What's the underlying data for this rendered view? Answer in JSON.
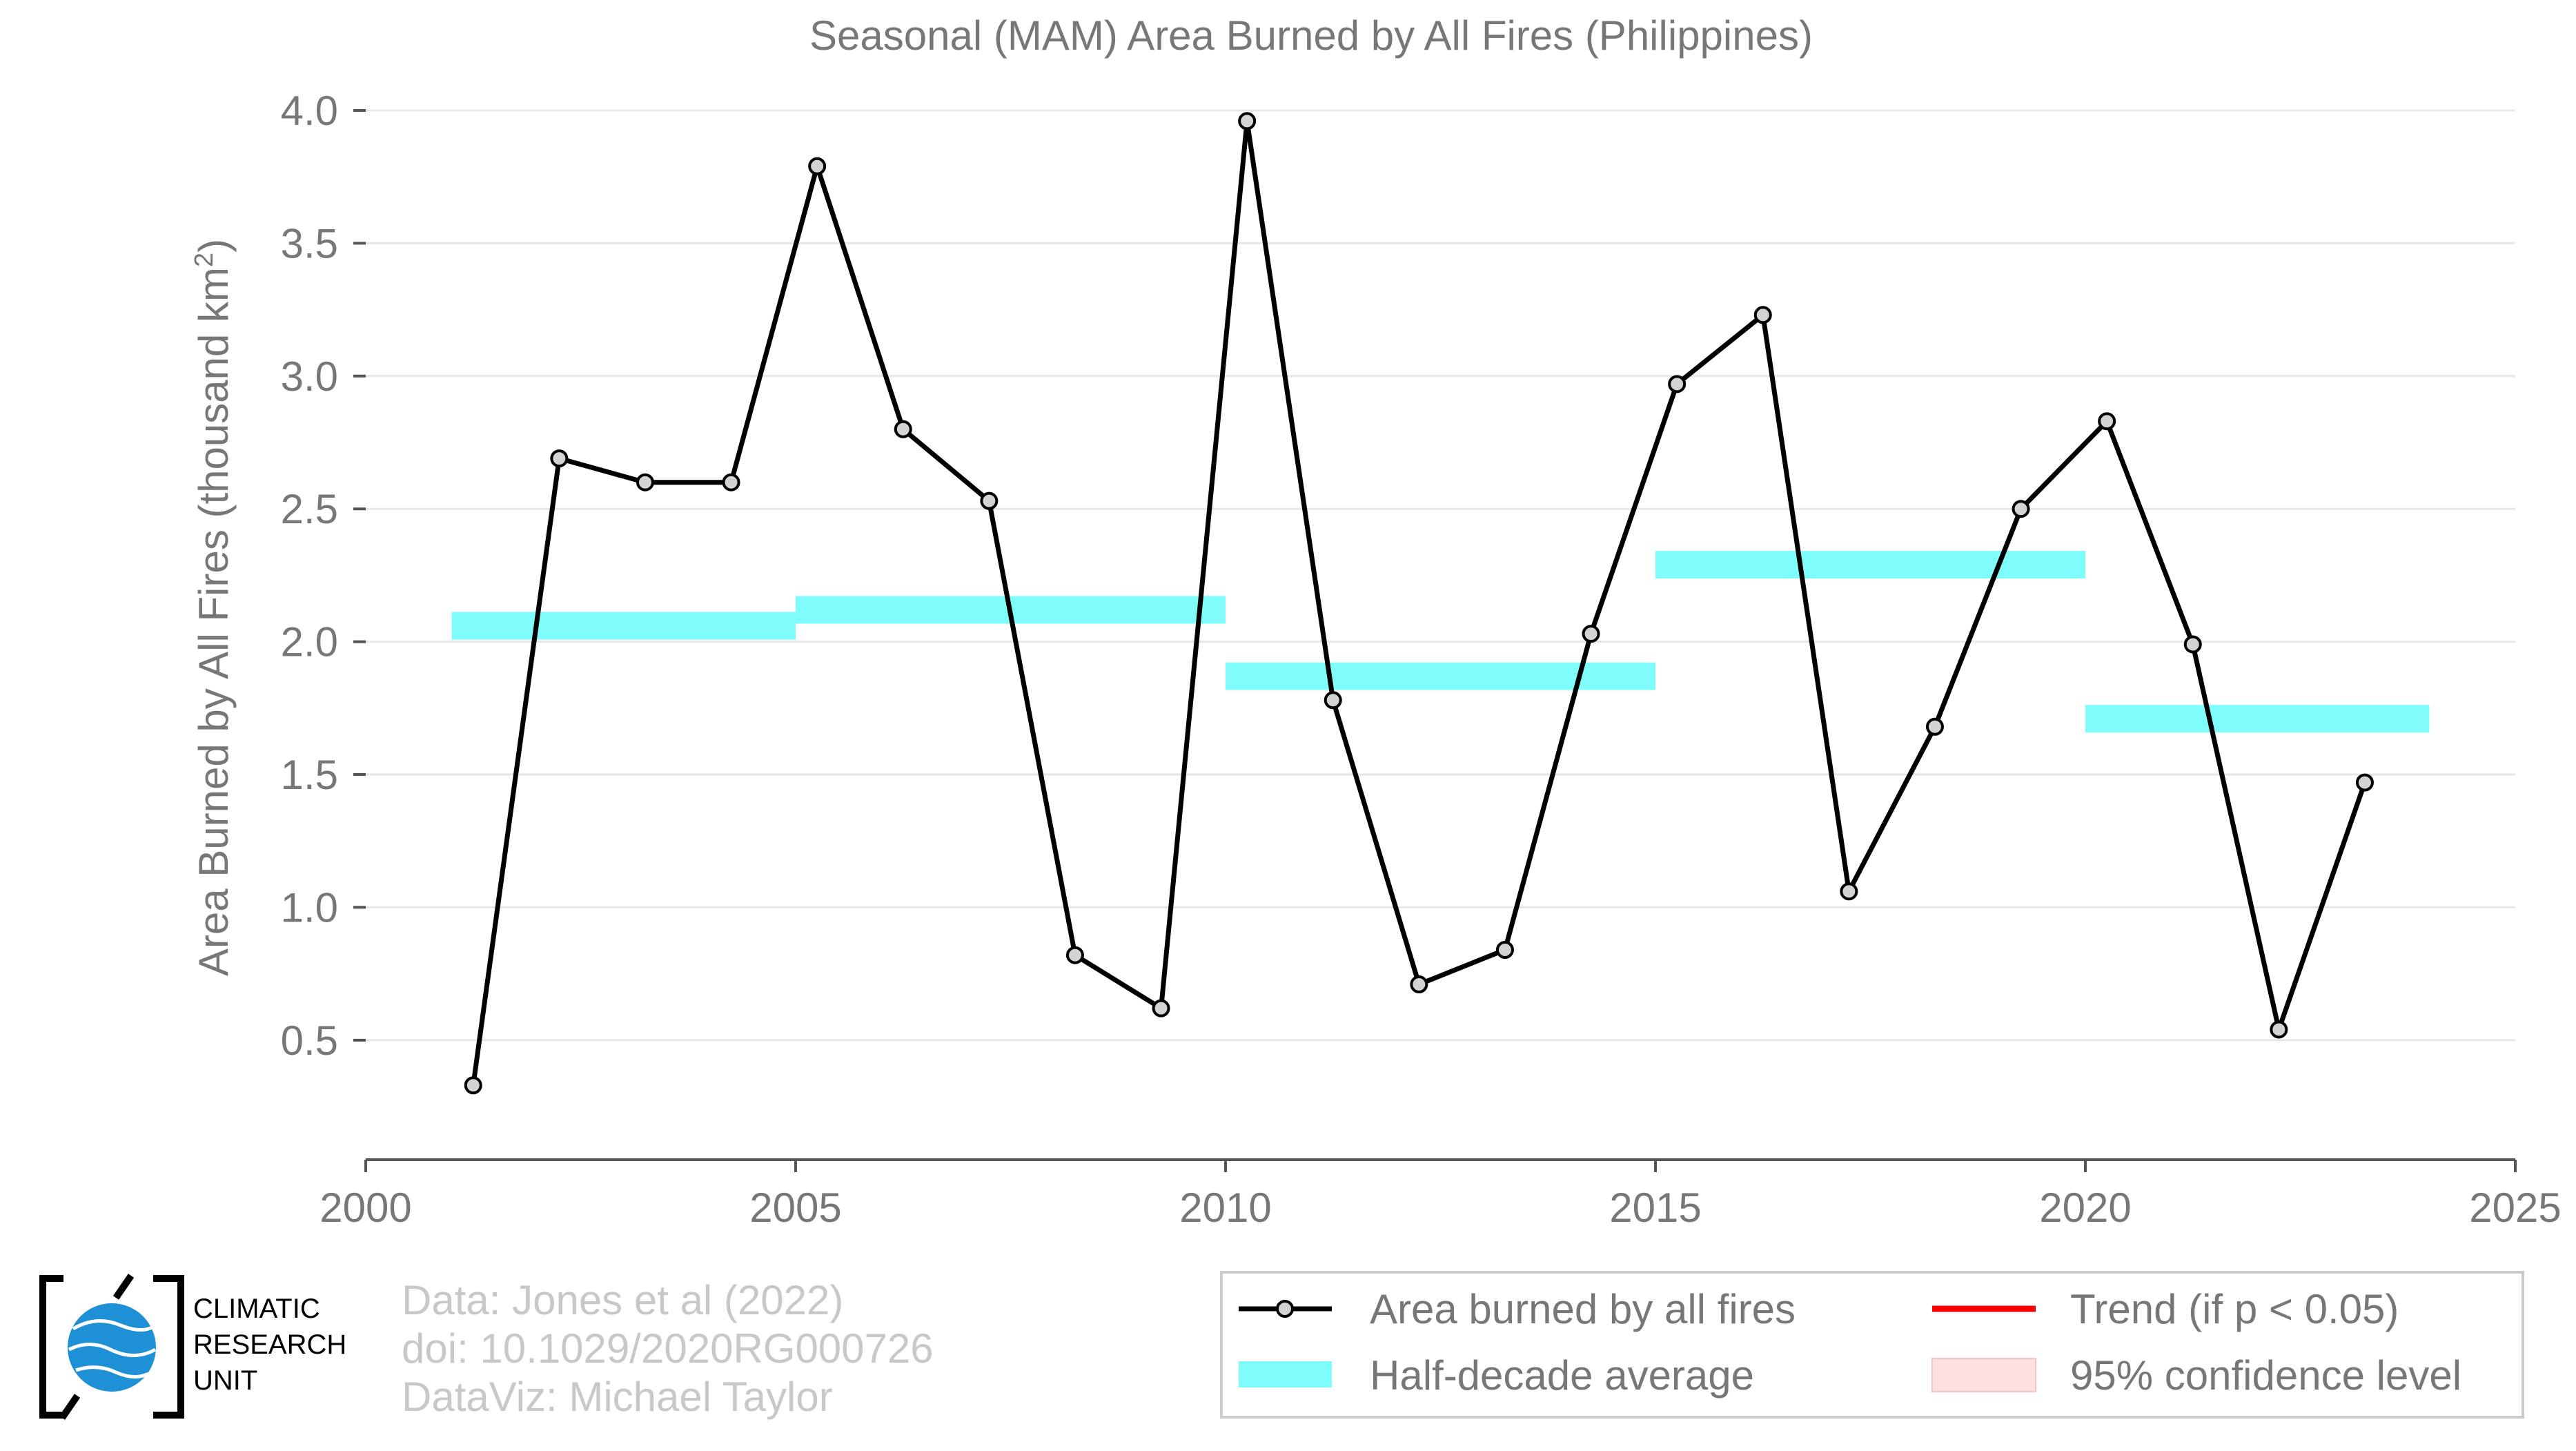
{
  "chart_data": {
    "type": "line",
    "title": "Seasonal (MAM) Area Burned by All Fires (Philippines)",
    "xlabel": "",
    "ylabel": "Area Burned by All Fires (thousand km",
    "ylabel_sup": "2",
    "ylabel_end": ")",
    "xlim": [
      2000,
      2025
    ],
    "ylim": [
      0.05,
      4.0
    ],
    "xticks": [
      2000,
      2005,
      2010,
      2015,
      2020,
      2025
    ],
    "xtick_labels": [
      "2000",
      "2005",
      "2010",
      "2015",
      "2020",
      "2025"
    ],
    "yticks": [
      0.5,
      1.0,
      1.5,
      2.0,
      2.5,
      3.0,
      3.5,
      4.0
    ],
    "ytick_labels": [
      "0.5",
      "1.0",
      "1.5",
      "2.0",
      "2.5",
      "3.0",
      "3.5",
      "4.0"
    ],
    "grid": "horizontal",
    "series": [
      {
        "name": "Area burned by all fires",
        "color": "#000000",
        "marker_fill": "#d3d3d3",
        "x": [
          2001.25,
          2002.25,
          2003.25,
          2004.25,
          2005.25,
          2006.25,
          2007.25,
          2008.25,
          2009.25,
          2010.25,
          2011.25,
          2012.25,
          2013.25,
          2014.25,
          2015.25,
          2016.25,
          2017.25,
          2018.25,
          2019.25,
          2020.25,
          2021.25,
          2022.25,
          2023.25
        ],
        "y": [
          0.33,
          2.69,
          2.6,
          2.6,
          3.79,
          2.8,
          2.53,
          0.82,
          0.62,
          3.96,
          1.78,
          0.71,
          0.84,
          2.03,
          2.97,
          3.23,
          1.06,
          1.68,
          2.5,
          2.83,
          1.99,
          0.54,
          1.47
        ]
      }
    ],
    "half_decade_average": {
      "name": "Half-decade average",
      "color": "#7ffcfc",
      "segments": [
        {
          "x0": 2001,
          "x1": 2005,
          "y": 2.06
        },
        {
          "x0": 2005,
          "x1": 2010,
          "y": 2.12
        },
        {
          "x0": 2010,
          "x1": 2015,
          "y": 1.87
        },
        {
          "x0": 2015,
          "x1": 2020,
          "y": 2.29
        },
        {
          "x0": 2020,
          "x1": 2024,
          "y": 1.71
        }
      ]
    },
    "legend": {
      "placement": "bottom-right",
      "entries": [
        {
          "label": "Area burned by all fires",
          "kind": "line-marker",
          "color": "#000000"
        },
        {
          "label": "Trend (if p < 0.05)",
          "kind": "line",
          "color": "#ff0000"
        },
        {
          "label": "Half-decade average",
          "kind": "band",
          "color": "#7ffcfc"
        },
        {
          "label": "95% confidence level",
          "kind": "band",
          "color": "#fde0e0"
        }
      ]
    }
  },
  "credits": {
    "line1": "Data: Jones et al (2022)",
    "line2": "doi: 10.1029/2020RG000726",
    "line3": "DataViz: Michael Taylor"
  },
  "logo": {
    "line1": "CLIMATIC",
    "line2": "RESEARCH",
    "line3": "UNIT",
    "color": "#1e90d6"
  }
}
